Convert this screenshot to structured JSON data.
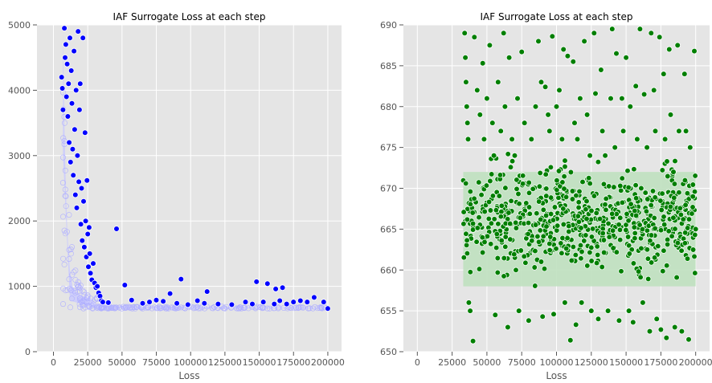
{
  "chart_data": [
    {
      "type": "scatter",
      "title": "IAF Surrogate Loss at each step",
      "xlabel": "Loss",
      "ylabel": "",
      "xlim": [
        -12000,
        210000
      ],
      "ylim": [
        0,
        5000
      ],
      "xticks": [
        0,
        25000,
        50000,
        75000,
        100000,
        125000,
        150000,
        175000,
        200000
      ],
      "xtick_labels": [
        "0",
        "25000",
        "50000",
        "75000",
        "100000",
        "125000",
        "150000",
        "175000",
        "200000"
      ],
      "yticks": [
        0,
        1000,
        2000,
        3000,
        4000,
        5000
      ],
      "ytick_labels": [
        "0",
        "1000",
        "2000",
        "3000",
        "4000",
        "5000"
      ],
      "grid": true,
      "colors": {
        "outlier": "#0000ff",
        "dense": "#c8c8ff"
      },
      "density_band": {
        "description": "dense low-loss band",
        "points": [
          [
            7000,
            4900
          ],
          [
            8000,
            3500
          ],
          [
            9000,
            2500
          ],
          [
            10000,
            1900
          ],
          [
            11000,
            1500
          ],
          [
            12000,
            1250
          ],
          [
            14000,
            1000
          ],
          [
            17000,
            900
          ],
          [
            22000,
            840
          ],
          [
            28000,
            810
          ],
          [
            32000,
            700
          ],
          [
            60000,
            690
          ],
          [
            100000,
            685
          ],
          [
            150000,
            680
          ],
          [
            200000,
            675
          ]
        ]
      },
      "series": [
        {
          "values_xy": [
            [
              6000,
              4200
            ],
            [
              6500,
              4030
            ],
            [
              7000,
              3700
            ],
            [
              8000,
              4950
            ],
            [
              8500,
              4500
            ],
            [
              9000,
              4700
            ],
            [
              9500,
              3900
            ],
            [
              10000,
              4400
            ],
            [
              10500,
              3600
            ],
            [
              11000,
              4100
            ],
            [
              11500,
              3200
            ],
            [
              12000,
              4800
            ],
            [
              12500,
              2900
            ],
            [
              13000,
              4300
            ],
            [
              13500,
              3800
            ],
            [
              14000,
              3100
            ],
            [
              14500,
              2700
            ],
            [
              15000,
              4600
            ],
            [
              15500,
              3400
            ],
            [
              16000,
              2400
            ],
            [
              16500,
              4000
            ],
            [
              17000,
              2200
            ],
            [
              17500,
              3000
            ],
            [
              18000,
              4900
            ],
            [
              18500,
              2600
            ],
            [
              19000,
              3700
            ],
            [
              19500,
              4100
            ],
            [
              20000,
              1950
            ],
            [
              20500,
              2500
            ],
            [
              21000,
              1700
            ],
            [
              21500,
              4800
            ],
            [
              22000,
              2300
            ],
            [
              22500,
              1600
            ],
            [
              23000,
              3350
            ],
            [
              23500,
              2000
            ],
            [
              24000,
              1450
            ],
            [
              24500,
              2620
            ],
            [
              25000,
              1800
            ],
            [
              25500,
              1300
            ],
            [
              26000,
              1900
            ],
            [
              26500,
              1500
            ],
            [
              27000,
              1200
            ],
            [
              28000,
              1100
            ],
            [
              29000,
              1350
            ],
            [
              30000,
              1050
            ],
            [
              31000,
              980
            ],
            [
              32000,
              1000
            ],
            [
              33000,
              900
            ],
            [
              34000,
              850
            ],
            [
              35000,
              780
            ],
            [
              36000,
              760
            ],
            [
              40000,
              750
            ],
            [
              46000,
              1880
            ],
            [
              52000,
              1020
            ],
            [
              57000,
              790
            ],
            [
              65000,
              740
            ],
            [
              70000,
              760
            ],
            [
              75000,
              790
            ],
            [
              80000,
              770
            ],
            [
              85000,
              890
            ],
            [
              90000,
              740
            ],
            [
              93000,
              1110
            ],
            [
              98000,
              720
            ],
            [
              105000,
              780
            ],
            [
              110000,
              740
            ],
            [
              112000,
              920
            ],
            [
              120000,
              730
            ],
            [
              130000,
              720
            ],
            [
              140000,
              760
            ],
            [
              145000,
              730
            ],
            [
              148000,
              1070
            ],
            [
              153000,
              760
            ],
            [
              156000,
              1040
            ],
            [
              161000,
              730
            ],
            [
              162000,
              960
            ],
            [
              165000,
              780
            ],
            [
              167000,
              980
            ],
            [
              170000,
              730
            ],
            [
              175000,
              760
            ],
            [
              180000,
              780
            ],
            [
              185000,
              760
            ],
            [
              190000,
              830
            ],
            [
              197000,
              760
            ],
            [
              200000,
              660
            ]
          ]
        }
      ]
    },
    {
      "type": "scatter",
      "title": "IAF Surrogate Loss at each step",
      "xlabel": "Loss",
      "ylabel": "",
      "xlim": [
        -10000,
        210000
      ],
      "ylim": [
        650,
        690
      ],
      "xticks": [
        0,
        25000,
        50000,
        75000,
        100000,
        125000,
        150000,
        175000,
        200000
      ],
      "xtick_labels": [
        "0",
        "25000",
        "50000",
        "75000",
        "100000",
        "125000",
        "150000",
        "175000",
        "200000"
      ],
      "yticks": [
        650,
        655,
        660,
        665,
        670,
        675,
        680,
        685,
        690
      ],
      "ytick_labels": [
        "650",
        "655",
        "660",
        "665",
        "670",
        "675",
        "680",
        "685",
        "690"
      ],
      "grid": true,
      "colors": {
        "outlier": "#007f00",
        "dense": "#bfe0bf"
      },
      "density_band": {
        "description": "dense band of points between roughly 658 and 672",
        "x_range": [
          33000,
          200000
        ],
        "y_range": [
          658,
          672
        ]
      },
      "series": [
        {
          "values_xy": [
            [
              34000,
              689
            ],
            [
              34500,
              686
            ],
            [
              35000,
              683
            ],
            [
              35500,
              680
            ],
            [
              36000,
              678
            ],
            [
              36500,
              676
            ],
            [
              37000,
              656
            ],
            [
              38000,
              655
            ],
            [
              40000,
              651.3
            ],
            [
              41000,
              688.5
            ],
            [
              43000,
              682
            ],
            [
              45000,
              679
            ],
            [
              47000,
              685.3
            ],
            [
              48000,
              676
            ],
            [
              50000,
              681
            ],
            [
              52000,
              687.5
            ],
            [
              54000,
              678
            ],
            [
              55000,
              674
            ],
            [
              56000,
              654.5
            ],
            [
              58000,
              683
            ],
            [
              60000,
              677
            ],
            [
              62000,
              689
            ],
            [
              63000,
              680
            ],
            [
              65000,
              653
            ],
            [
              66000,
              686
            ],
            [
              68000,
              676
            ],
            [
              70000,
              674
            ],
            [
              72000,
              681
            ],
            [
              73000,
              655
            ],
            [
              75000,
              686.7
            ],
            [
              77000,
              678
            ],
            [
              80000,
              653.8
            ],
            [
              82000,
              676
            ],
            [
              85000,
              680
            ],
            [
              87000,
              688
            ],
            [
              89000,
              683
            ],
            [
              90000,
              654.3
            ],
            [
              92000,
              682.4
            ],
            [
              94000,
              679
            ],
            [
              95000,
              677
            ],
            [
              97000,
              688.6
            ],
            [
              98000,
              654.6
            ],
            [
              100000,
              680
            ],
            [
              102000,
              682
            ],
            [
              104000,
              676
            ],
            [
              105000,
              687
            ],
            [
              106000,
              656
            ],
            [
              108000,
              686.2
            ],
            [
              110000,
              651.4
            ],
            [
              112000,
              685.5
            ],
            [
              113000,
              678
            ],
            [
              114000,
              653.3
            ],
            [
              115000,
              676
            ],
            [
              117000,
              681
            ],
            [
              118000,
              656
            ],
            [
              120000,
              688
            ],
            [
              122000,
              679
            ],
            [
              124000,
              674
            ],
            [
              125000,
              655
            ],
            [
              127000,
              689
            ],
            [
              128000,
              681.6
            ],
            [
              130000,
              654
            ],
            [
              132000,
              684.5
            ],
            [
              133000,
              677
            ],
            [
              135000,
              674
            ],
            [
              137000,
              655
            ],
            [
              139000,
              681
            ],
            [
              140000,
              689.5
            ],
            [
              142000,
              675
            ],
            [
              143000,
              686.5
            ],
            [
              145000,
              653.8
            ],
            [
              147000,
              681
            ],
            [
              148000,
              677
            ],
            [
              150000,
              686
            ],
            [
              152000,
              655
            ],
            [
              153000,
              680
            ],
            [
              155000,
              653.6
            ],
            [
              157000,
              682.5
            ],
            [
              158000,
              676
            ],
            [
              160000,
              689.5
            ],
            [
              162000,
              656
            ],
            [
              163000,
              681.5
            ],
            [
              165000,
              675
            ],
            [
              167000,
              652.5
            ],
            [
              168000,
              689
            ],
            [
              170000,
              682
            ],
            [
              171000,
              677
            ],
            [
              172000,
              654
            ],
            [
              174000,
              688.5
            ],
            [
              175000,
              652.7
            ],
            [
              177000,
              684
            ],
            [
              178000,
              676
            ],
            [
              179000,
              651.7
            ],
            [
              181000,
              687
            ],
            [
              182000,
              679
            ],
            [
              184000,
              672
            ],
            [
              185000,
              653
            ],
            [
              187000,
              687.5
            ],
            [
              188000,
              677
            ],
            [
              190000,
              652.5
            ],
            [
              192000,
              684
            ],
            [
              193000,
              677
            ],
            [
              195000,
              651.5
            ],
            [
              196000,
              675
            ],
            [
              198000,
              669
            ],
            [
              199000,
              686.8
            ],
            [
              200000,
              665
            ]
          ]
        }
      ]
    }
  ]
}
